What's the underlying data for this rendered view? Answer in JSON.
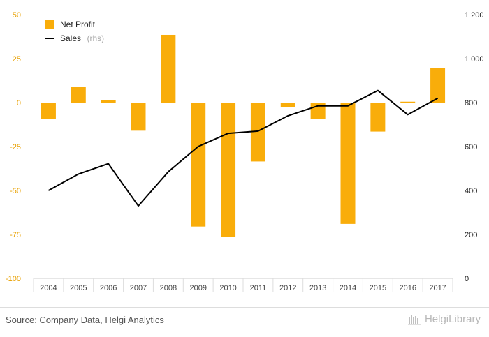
{
  "chart_data": {
    "type": "bar",
    "categories": [
      "2004",
      "2005",
      "2006",
      "2007",
      "2008",
      "2009",
      "2010",
      "2011",
      "2012",
      "2013",
      "2014",
      "2015",
      "2016",
      "2017"
    ],
    "series": [
      {
        "name": "Net Profit",
        "type": "bar",
        "axis": "left",
        "color": "#f9ad0a",
        "values": [
          -9.5,
          9,
          1.5,
          -16,
          38.5,
          -70.5,
          -76.5,
          -33.5,
          -2.5,
          -9.5,
          -69,
          -16.5,
          0.5,
          19.5
        ]
      },
      {
        "name": "Sales",
        "type": "line",
        "axis": "right",
        "color": "#000000",
        "values": [
          400,
          475,
          522,
          330,
          485,
          600,
          660,
          670,
          740,
          785,
          785,
          855,
          745,
          820
        ]
      }
    ],
    "legend": [
      {
        "label": "Net Profit",
        "note": ""
      },
      {
        "label": "Sales",
        "note": "(rhs)"
      }
    ],
    "legend_position": "top-left",
    "y_left": {
      "min": -100,
      "max": 50,
      "ticks": [
        50,
        25,
        0,
        -25,
        -50,
        -75,
        -100
      ]
    },
    "y_right": {
      "min": 0,
      "max": 1200,
      "ticks": [
        1200,
        1000,
        800,
        600,
        400,
        200,
        0
      ]
    },
    "tick_labels_left": [
      "50",
      "25",
      "0",
      "-25",
      "-50",
      "-75",
      "-100"
    ],
    "tick_labels_right": [
      "1 200",
      "1 000",
      "800",
      "600",
      "400",
      "200",
      "0"
    ],
    "grid": false
  },
  "footer": {
    "source": "Source: Company Data, Helgi Analytics",
    "logo_text": "HelgiLibrary"
  },
  "colors": {
    "bar": "#f9ad0a",
    "line": "#000000",
    "left_axis_text": "#e8a000"
  }
}
